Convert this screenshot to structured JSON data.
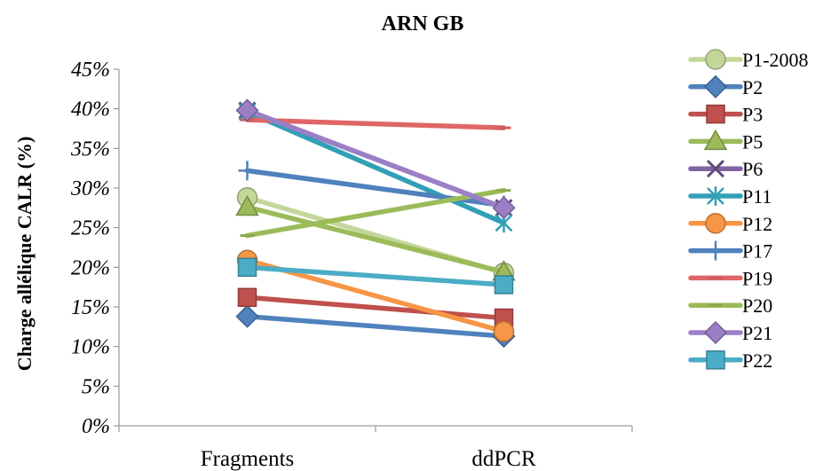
{
  "chart_data": {
    "type": "line",
    "title": "ARN GB",
    "ylabel": "Charge allélique CALR (%)",
    "xlabel": "",
    "categories": [
      "Fragments",
      "ddPCR"
    ],
    "y_ticks": [
      "0%",
      "5%",
      "10%",
      "15%",
      "20%",
      "25%",
      "30%",
      "35%",
      "40%",
      "45%"
    ],
    "ylim": [
      0,
      45
    ],
    "grid": false,
    "legend_position": "right",
    "series": [
      {
        "name": "P1-2008",
        "values": [
          28.8,
          19.3
        ],
        "color": "#c4d79b",
        "marker": "circle"
      },
      {
        "name": "P2",
        "values": [
          13.8,
          11.3
        ],
        "color": "#4f81bd",
        "marker": "diamond"
      },
      {
        "name": "P3",
        "values": [
          16.2,
          13.6
        ],
        "color": "#c0504d",
        "marker": "square"
      },
      {
        "name": "P5",
        "values": [
          27.6,
          19.4
        ],
        "color": "#9bbb59",
        "marker": "triangle"
      },
      {
        "name": "P6",
        "values": [
          39.8,
          27.5
        ],
        "color": "#8064a2",
        "marker": "x"
      },
      {
        "name": "P11",
        "values": [
          39.6,
          25.6
        ],
        "color": "#31a0b7",
        "marker": "star"
      },
      {
        "name": "P12",
        "values": [
          20.9,
          11.9
        ],
        "color": "#f79646",
        "marker": "circle"
      },
      {
        "name": "P17",
        "values": [
          32.2,
          27.8
        ],
        "color": "#4f81bd",
        "marker": "plus"
      },
      {
        "name": "P19",
        "values": [
          38.6,
          37.6
        ],
        "color": "#e06666",
        "marker": "dash"
      },
      {
        "name": "P20",
        "values": [
          24.0,
          29.7
        ],
        "color": "#9bbb59",
        "marker": "dash"
      },
      {
        "name": "P21",
        "values": [
          39.8,
          27.5
        ],
        "color": "#9b7fc6",
        "marker": "diamond"
      },
      {
        "name": "P22",
        "values": [
          20.0,
          17.8
        ],
        "color": "#4bacc6",
        "marker": "square"
      }
    ]
  }
}
